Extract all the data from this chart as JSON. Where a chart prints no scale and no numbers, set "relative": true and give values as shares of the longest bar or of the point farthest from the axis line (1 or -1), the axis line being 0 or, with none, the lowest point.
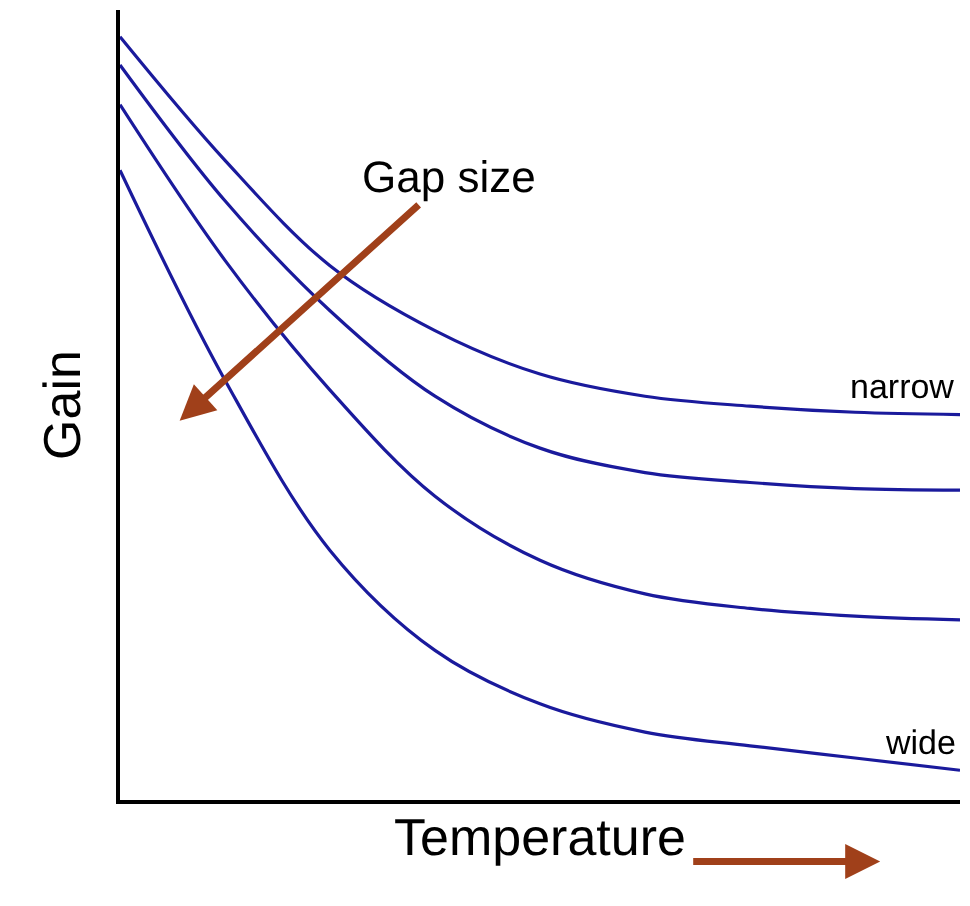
{
  "chart_data": {
    "type": "line",
    "relative": true,
    "xlabel": "Temperature",
    "ylabel": "Gain",
    "legend": false,
    "marker": "none",
    "line_style": "solid",
    "categories": [
      null,
      null,
      null,
      null,
      null,
      null,
      null,
      null,
      null
    ],
    "series": [
      {
        "name": "narrow",
        "color": "#1a1a9c",
        "values": [
          1,
          0.838,
          0.7,
          0.615,
          0.558,
          0.529,
          0.516,
          0.508,
          0.505
        ]
      },
      {
        "color": "#1a1a9c",
        "values": [
          0.963,
          0.785,
          0.641,
          0.529,
          0.461,
          0.429,
          0.416,
          0.408,
          0.406
        ]
      },
      {
        "color": "#1a1a9c",
        "values": [
          0.911,
          0.707,
          0.537,
          0.398,
          0.314,
          0.27,
          0.251,
          0.241,
          0.236
        ]
      },
      {
        "name": "wide",
        "color": "#1a1a9c",
        "values": [
          0.825,
          0.55,
          0.327,
          0.196,
          0.126,
          0.089,
          0.071,
          0.055,
          0.039
        ]
      }
    ],
    "annotations": [
      "Gap size"
    ]
  }
}
